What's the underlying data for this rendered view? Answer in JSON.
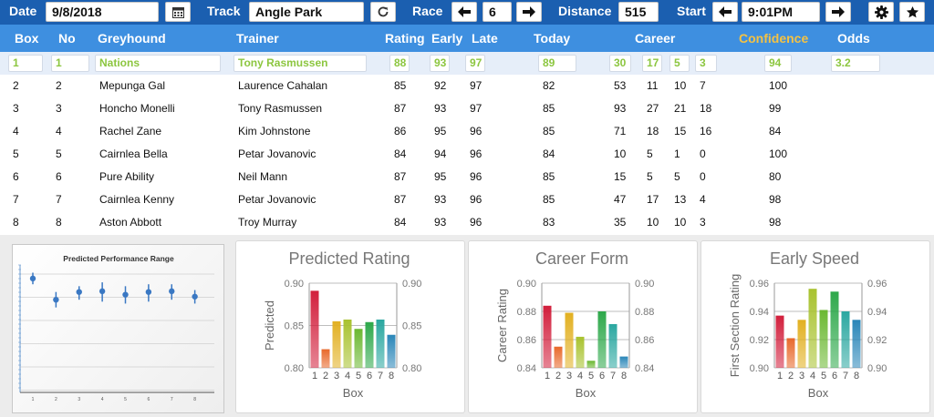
{
  "toolbar": {
    "date_label": "Date",
    "date_value": "9/8/2018",
    "track_label": "Track",
    "track_value": "Angle Park",
    "race_label": "Race",
    "race_value": "6",
    "distance_label": "Distance",
    "distance_value": "515",
    "start_label": "Start",
    "start_value": "9:01PM"
  },
  "table": {
    "headers": {
      "box": "Box",
      "no": "No",
      "greyhound": "Greyhound",
      "trainer": "Trainer",
      "rating": "Rating",
      "early": "Early",
      "late": "Late",
      "today": "Today",
      "career": "Career",
      "confidence": "Confidence",
      "odds": "Odds"
    },
    "rows": [
      {
        "box": "1",
        "no": "1",
        "greyhound": "Nations",
        "trainer": "Tony Rasmussen",
        "rating": "88",
        "early": "93",
        "late": "97",
        "today": "89",
        "c1": "30",
        "c2": "17",
        "c3": "5",
        "c4": "3",
        "confidence": "94",
        "odds": "3.2"
      },
      {
        "box": "2",
        "no": "2",
        "greyhound": "Mepunga Gal",
        "trainer": "Laurence Cahalan",
        "rating": "85",
        "early": "92",
        "late": "97",
        "today": "82",
        "c1": "53",
        "c2": "11",
        "c3": "10",
        "c4": "7",
        "confidence": "100",
        "odds": ""
      },
      {
        "box": "3",
        "no": "3",
        "greyhound": "Honcho Monelli",
        "trainer": "Tony Rasmussen",
        "rating": "87",
        "early": "93",
        "late": "97",
        "today": "85",
        "c1": "93",
        "c2": "27",
        "c3": "21",
        "c4": "18",
        "confidence": "99",
        "odds": ""
      },
      {
        "box": "4",
        "no": "4",
        "greyhound": "Rachel Zane",
        "trainer": "Kim Johnstone",
        "rating": "86",
        "early": "95",
        "late": "96",
        "today": "85",
        "c1": "71",
        "c2": "18",
        "c3": "15",
        "c4": "16",
        "confidence": "84",
        "odds": ""
      },
      {
        "box": "5",
        "no": "5",
        "greyhound": "Cairnlea Bella",
        "trainer": "Petar Jovanovic",
        "rating": "84",
        "early": "94",
        "late": "96",
        "today": "84",
        "c1": "10",
        "c2": "5",
        "c3": "1",
        "c4": "0",
        "confidence": "100",
        "odds": ""
      },
      {
        "box": "6",
        "no": "6",
        "greyhound": "Pure Ability",
        "trainer": "Neil Mann",
        "rating": "87",
        "early": "95",
        "late": "96",
        "today": "85",
        "c1": "15",
        "c2": "5",
        "c3": "5",
        "c4": "0",
        "confidence": "80",
        "odds": ""
      },
      {
        "box": "7",
        "no": "7",
        "greyhound": "Cairnlea Kenny",
        "trainer": "Petar Jovanovic",
        "rating": "87",
        "early": "93",
        "late": "96",
        "today": "85",
        "c1": "47",
        "c2": "17",
        "c3": "13",
        "c4": "4",
        "confidence": "98",
        "odds": ""
      },
      {
        "box": "8",
        "no": "8",
        "greyhound": "Aston Abbott",
        "trainer": "Troy Murray",
        "rating": "84",
        "early": "93",
        "late": "96",
        "today": "83",
        "c1": "35",
        "c2": "10",
        "c3": "10",
        "c4": "3",
        "confidence": "98",
        "odds": ""
      }
    ]
  },
  "icons": {
    "calendar": "calendar-icon",
    "refresh": "refresh-icon",
    "prev": "arrow-left-icon",
    "next": "arrow-right-icon",
    "settings": "gear-icon",
    "favorite": "star-icon"
  },
  "colors": {
    "toolbar_bg": "#1b5fb0",
    "header_bg": "#3e8fe0",
    "confidence_header": "#f5c242",
    "selected_text": "#8cc63f",
    "selected_row_bg": "#e6eef9",
    "bar_colors": [
      "#d21f3c",
      "#e8692b",
      "#e2b021",
      "#a8c22e",
      "#6bb831",
      "#2da84a",
      "#2aa7a0",
      "#2a86b8"
    ]
  },
  "chart_data": [
    {
      "type": "scatter",
      "title": "Predicted Performance Range",
      "x": [
        1,
        2,
        3,
        4,
        5,
        6,
        7,
        8
      ],
      "y": [
        0.895,
        0.84,
        0.86,
        0.862,
        0.853,
        0.86,
        0.862,
        0.848
      ],
      "error_low": [
        0.88,
        0.82,
        0.84,
        0.835,
        0.83,
        0.835,
        0.84,
        0.83
      ],
      "error_high": [
        0.91,
        0.86,
        0.875,
        0.885,
        0.875,
        0.88,
        0.88,
        0.865
      ],
      "ylim": [
        0.6,
        0.93
      ],
      "grid": true
    },
    {
      "type": "bar",
      "title": "Predicted Rating",
      "categories": [
        "1",
        "2",
        "3",
        "4",
        "5",
        "6",
        "7",
        "8"
      ],
      "values": [
        0.891,
        0.822,
        0.855,
        0.857,
        0.846,
        0.854,
        0.857,
        0.839
      ],
      "xlabel": "Box",
      "ylabel": "Predicted",
      "ylim": [
        0.8,
        0.9
      ],
      "yticks": [
        "0.80",
        "0.85",
        "0.90"
      ],
      "yticks_right": [
        "0.80",
        "0.85",
        "0.90"
      ]
    },
    {
      "type": "bar",
      "title": "Career Form",
      "categories": [
        "1",
        "2",
        "3",
        "4",
        "5",
        "6",
        "7",
        "8"
      ],
      "values": [
        0.884,
        0.855,
        0.879,
        0.862,
        0.845,
        0.88,
        0.871,
        0.848
      ],
      "xlabel": "Box",
      "ylabel": "Career Rating",
      "ylim": [
        0.84,
        0.9
      ],
      "yticks": [
        "0.84",
        "0.86",
        "0.88",
        "0.90"
      ],
      "yticks_right": [
        "0.84",
        "0.86",
        "0.88",
        "0.90"
      ]
    },
    {
      "type": "bar",
      "title": "Early Speed",
      "categories": [
        "1",
        "2",
        "3",
        "4",
        "5",
        "6",
        "7",
        "8"
      ],
      "values": [
        0.937,
        0.921,
        0.934,
        0.956,
        0.941,
        0.954,
        0.94,
        0.934
      ],
      "xlabel": "Box",
      "ylabel": "First Section Rating",
      "ylim": [
        0.9,
        0.96
      ],
      "yticks": [
        "0.90",
        "0.92",
        "0.94",
        "0.96"
      ],
      "yticks_right": [
        "0.90",
        "0.92",
        "0.94",
        "0.96"
      ]
    }
  ]
}
